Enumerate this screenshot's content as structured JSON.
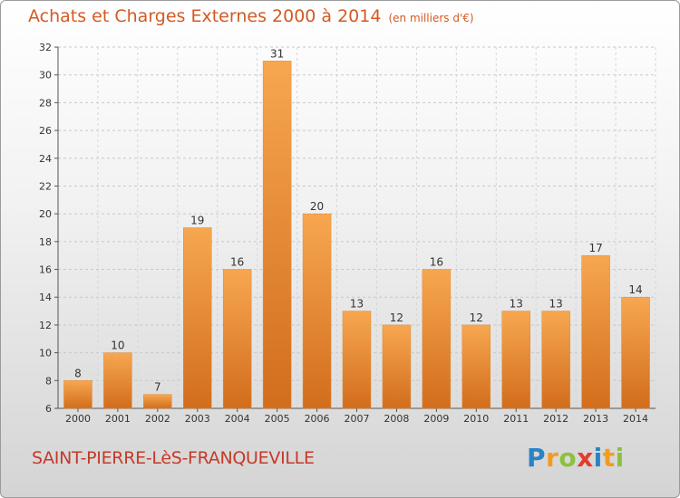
{
  "header": {
    "title": "Achats et Charges Externes 2000 à 2014",
    "subtitle": "(en milliers d'€)"
  },
  "footer": {
    "town": "SAINT-PIERRE-LèS-FRANQUEVILLE",
    "logo": {
      "text": "Proxiti",
      "letters": [
        "P",
        "r",
        "o",
        "x",
        "i",
        "t",
        "i"
      ],
      "colors": [
        "#2a83c4",
        "#f29c1f",
        "#8cc13f",
        "#e03d2d",
        "#2a83c4",
        "#f29c1f",
        "#8cc13f"
      ]
    }
  },
  "colors": {
    "accent": "#d35a23",
    "bar_light": "#f7a750",
    "bar_dark": "#d26d1c",
    "town": "#c53a28"
  },
  "chart_data": {
    "type": "bar",
    "categories": [
      "2000",
      "2001",
      "2002",
      "2003",
      "2004",
      "2005",
      "2006",
      "2007",
      "2008",
      "2009",
      "2010",
      "2011",
      "2012",
      "2013",
      "2014"
    ],
    "values": [
      8,
      10,
      7,
      19,
      16,
      31,
      20,
      13,
      12,
      16,
      12,
      13,
      13,
      17,
      14
    ],
    "title": "Achats et Charges Externes 2000 à 2014",
    "subtitle": "(en milliers d'€)",
    "ylim": [
      6,
      32
    ],
    "yticks": [
      6,
      8,
      10,
      12,
      14,
      16,
      18,
      20,
      22,
      24,
      26,
      28,
      30,
      32
    ],
    "grid": true,
    "data_labels": true
  }
}
